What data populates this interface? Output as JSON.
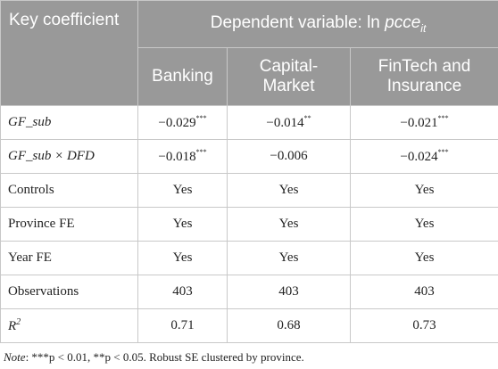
{
  "header": {
    "key_coefficient": "Key coefficient",
    "dependent_prefix": "Dependent variable: ln ",
    "dependent_var": "pcce",
    "dependent_sub": "it",
    "columns": [
      "Banking",
      "Capital-Market",
      "FinTech and Insurance"
    ]
  },
  "rows": [
    {
      "label": "GF_sub",
      "italic": true,
      "values": [
        "−0.029",
        "−0.014",
        "−0.021"
      ],
      "stars": [
        "***",
        "**",
        "***"
      ]
    },
    {
      "label": "GF_sub × DFD",
      "italic": true,
      "values": [
        "−0.018",
        "−0.006",
        "−0.024"
      ],
      "stars": [
        "***",
        "",
        "***"
      ]
    },
    {
      "label": "Controls",
      "italic": false,
      "values": [
        "Yes",
        "Yes",
        "Yes"
      ],
      "stars": [
        "",
        "",
        ""
      ]
    },
    {
      "label": "Province FE",
      "italic": false,
      "values": [
        "Yes",
        "Yes",
        "Yes"
      ],
      "stars": [
        "",
        "",
        ""
      ]
    },
    {
      "label": "Year FE",
      "italic": false,
      "values": [
        "Yes",
        "Yes",
        "Yes"
      ],
      "stars": [
        "",
        "",
        ""
      ]
    },
    {
      "label": "Observations",
      "italic": false,
      "values": [
        "403",
        "403",
        "403"
      ],
      "stars": [
        "",
        "",
        ""
      ]
    },
    {
      "label": "R",
      "label_sup": "2",
      "italic": true,
      "values": [
        "0.71",
        "0.68",
        "0.73"
      ],
      "stars": [
        "",
        "",
        ""
      ]
    }
  ],
  "note": {
    "label": "Note",
    "text": ": ***p < 0.01, **p < 0.05. Robust SE clustered by province."
  },
  "colors": {
    "header_bg": "#999999",
    "header_text": "#ffffff",
    "border": "#c8c8c8",
    "body_text": "#222222"
  }
}
